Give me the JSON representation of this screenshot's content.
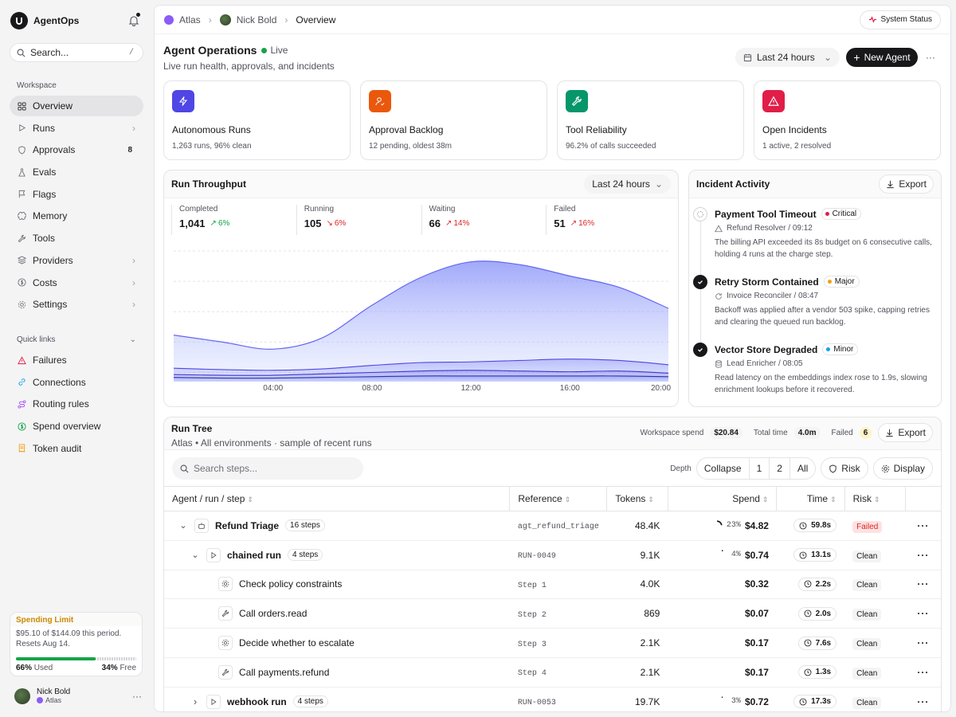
{
  "app": {
    "name": "AgentOps"
  },
  "sidebar": {
    "search_placeholder": "Search...",
    "search_shortcut": "/",
    "workspace_label": "Workspace",
    "items": [
      {
        "label": "Overview",
        "icon": "grid-icon",
        "active": true
      },
      {
        "label": "Runs",
        "icon": "play-icon",
        "chevron": true
      },
      {
        "label": "Approvals",
        "icon": "shield-check-icon",
        "count": "8"
      },
      {
        "label": "Evals",
        "icon": "flask-icon"
      },
      {
        "label": "Flags",
        "icon": "flag-icon"
      },
      {
        "label": "Memory",
        "icon": "brain-icon"
      },
      {
        "label": "Tools",
        "icon": "wrench-icon"
      },
      {
        "label": "Providers",
        "icon": "layers-icon",
        "chevron": true
      },
      {
        "label": "Costs",
        "icon": "dollar-icon",
        "chevron": true
      },
      {
        "label": "Settings",
        "icon": "gear-icon",
        "chevron": true
      }
    ],
    "quick_links_label": "Quick links",
    "quick_links": [
      {
        "label": "Failures",
        "icon": "warning-icon",
        "color": "#e11d48"
      },
      {
        "label": "Connections",
        "icon": "link-icon",
        "color": "#0ea5e9"
      },
      {
        "label": "Routing rules",
        "icon": "route-icon",
        "color": "#a855f7"
      },
      {
        "label": "Spend overview",
        "icon": "dollar-circle-icon",
        "color": "#16a34a"
      },
      {
        "label": "Token audit",
        "icon": "receipt-icon",
        "color": "#f59e0b"
      }
    ],
    "spending_limit": {
      "title": "Spending Limit",
      "line1": "$95.10 of $144.09 this period.",
      "line2": "Resets Aug 14.",
      "used_pct": 66,
      "used_label": "66%",
      "used_suffix": "Used",
      "free_label": "34%",
      "free_suffix": "Free"
    },
    "user": {
      "name": "Nick Bold",
      "workspace": "Atlas"
    }
  },
  "breadcrumb": {
    "workspace": "Atlas",
    "user": "Nick Bold",
    "current": "Overview"
  },
  "system_status_label": "System Status",
  "header": {
    "title": "Agent Operations",
    "live_label": "Live",
    "subtitle": "Live run health, approvals, and incidents",
    "range_label": "Last 24 hours",
    "new_agent_label": "New Agent"
  },
  "cards": [
    {
      "title": "Autonomous Runs",
      "sub": "1,263 runs, 96% clean",
      "icon": "bolt-icon",
      "color": "#4f46e5"
    },
    {
      "title": "Approval Backlog",
      "sub": "12 pending, oldest 38m",
      "icon": "user-check-icon",
      "color": "#ea580c"
    },
    {
      "title": "Tool Reliability",
      "sub": "96.2% of calls succeeded",
      "icon": "wrench-icon",
      "color": "#059669"
    },
    {
      "title": "Open Incidents",
      "sub": "1 active, 2 resolved",
      "icon": "alert-triangle-icon",
      "color": "#e11d48"
    }
  ],
  "throughput": {
    "title": "Run Throughput",
    "range_label": "Last 24 hours",
    "stats": [
      {
        "label": "Completed",
        "value": "1,041",
        "delta": "6%",
        "dir": "green"
      },
      {
        "label": "Running",
        "value": "105",
        "delta": "6%",
        "dir": "red"
      },
      {
        "label": "Waiting",
        "value": "66",
        "delta": "14%",
        "dir": "red"
      },
      {
        "label": "Failed",
        "value": "51",
        "delta": "16%",
        "dir": "red"
      }
    ]
  },
  "chart_data": {
    "type": "area",
    "x": [
      "00:00",
      "02:00",
      "04:00",
      "06:00",
      "08:00",
      "10:00",
      "12:00",
      "14:00",
      "16:00",
      "18:00",
      "20:00"
    ],
    "x_tick_labels": [
      "04:00",
      "08:00",
      "12:00",
      "16:00",
      "20:00"
    ],
    "series": [
      {
        "values": [
          66,
          56,
          46,
          62,
          108,
          148,
          170,
          166,
          150,
          134,
          104
        ],
        "color": "#6366f1"
      },
      {
        "values": [
          19,
          17,
          16,
          18,
          23,
          27,
          28,
          30,
          32,
          30,
          24
        ],
        "color": "#4f46e5"
      },
      {
        "values": [
          10,
          9,
          9,
          11,
          13,
          15,
          16,
          15,
          14,
          15,
          12
        ],
        "color": "#4338ca"
      },
      {
        "values": [
          6,
          5,
          5,
          6,
          7,
          8,
          8,
          8,
          8,
          8,
          7
        ],
        "color": "#3730a3"
      }
    ],
    "ylim": [
      0,
      190
    ],
    "grid": true
  },
  "incidents": {
    "title": "Incident Activity",
    "export_label": "Export",
    "items": [
      {
        "title": "Payment Tool Timeout",
        "severity": "Critical",
        "sev_color": "#e11d48",
        "source": "Refund Resolver / 09:12",
        "desc": "The billing API exceeded its 8s budget on 6 consecutive calls, holding 4 runs at the charge step.",
        "state": "active"
      },
      {
        "title": "Retry Storm Contained",
        "severity": "Major",
        "sev_color": "#f59e0b",
        "source": "Invoice Reconciler / 08:47",
        "desc": "Backoff was applied after a vendor 503 spike, capping retries and clearing the queued run backlog.",
        "state": "resolved"
      },
      {
        "title": "Vector Store Degraded",
        "severity": "Minor",
        "sev_color": "#0ea5e9",
        "source": "Lead Enricher / 08:05",
        "desc": "Read latency on the embeddings index rose to 1.9s, slowing enrichment lookups before it recovered.",
        "state": "resolved"
      }
    ]
  },
  "tree": {
    "title": "Run Tree",
    "subtitle_ws": "Atlas",
    "subtitle_rest": "All environments · sample of recent runs",
    "workspace_spend_label": "Workspace spend",
    "workspace_spend": "$20.84",
    "total_time_label": "Total time",
    "total_time": "4.0m",
    "failed_label": "Failed",
    "failed": "6",
    "export_label": "Export",
    "search_placeholder": "Search steps...",
    "depth_label": "Depth",
    "depth_options": [
      "Collapse",
      "1",
      "2",
      "All"
    ],
    "risk_label": "Risk",
    "display_label": "Display",
    "columns": [
      "Agent / run / step",
      "Reference",
      "Tokens",
      "Spend",
      "Time",
      "Risk"
    ],
    "rows": [
      {
        "level": 0,
        "expand": "down",
        "icon": "bot-icon",
        "name": "Refund Triage",
        "badge": "16 steps",
        "ref": "agt_refund_triage",
        "tokens": "48.4K",
        "pct": "23%",
        "pct_val": 23,
        "spend": "$4.82",
        "time": "59.8s",
        "risk": "Failed"
      },
      {
        "level": 1,
        "expand": "down",
        "icon": "play-icon",
        "name": "chained run",
        "badge": "4 steps",
        "ref": "RUN-0049",
        "tokens": "9.1K",
        "pct": "4%",
        "pct_val": 4,
        "spend": "$0.74",
        "time": "13.1s",
        "risk": "Clean"
      },
      {
        "level": 2,
        "expand": "",
        "icon": "gear-icon",
        "name": "Check policy constraints",
        "badge": "",
        "ref": "Step 1",
        "tokens": "4.0K",
        "pct": "",
        "pct_val": 0,
        "spend": "$0.32",
        "time": "2.2s",
        "risk": "Clean"
      },
      {
        "level": 2,
        "expand": "",
        "icon": "wrench-icon",
        "name": "Call orders.read",
        "badge": "",
        "ref": "Step 2",
        "tokens": "869",
        "pct": "",
        "pct_val": 0,
        "spend": "$0.07",
        "time": "2.0s",
        "risk": "Clean"
      },
      {
        "level": 2,
        "expand": "",
        "icon": "gear-icon",
        "name": "Decide whether to escalate",
        "badge": "",
        "ref": "Step 3",
        "tokens": "2.1K",
        "pct": "",
        "pct_val": 0,
        "spend": "$0.17",
        "time": "7.6s",
        "risk": "Clean"
      },
      {
        "level": 2,
        "expand": "",
        "icon": "wrench-icon",
        "name": "Call payments.refund",
        "badge": "",
        "ref": "Step 4",
        "tokens": "2.1K",
        "pct": "",
        "pct_val": 0,
        "spend": "$0.17",
        "time": "1.3s",
        "risk": "Clean"
      },
      {
        "level": 1,
        "expand": "right",
        "icon": "play-icon",
        "name": "webhook run",
        "badge": "4 steps",
        "ref": "RUN-0053",
        "tokens": "19.7K",
        "pct": "3%",
        "pct_val": 3,
        "spend": "$0.72",
        "time": "17.3s",
        "risk": "Clean"
      }
    ]
  }
}
